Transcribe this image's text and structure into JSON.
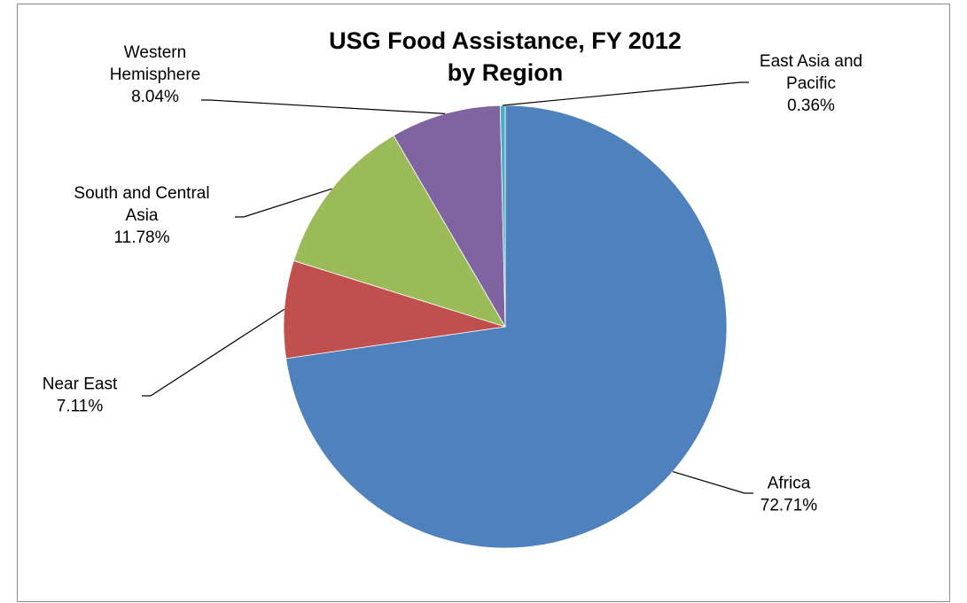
{
  "chart_data": {
    "type": "pie",
    "title": "USG Food Assistance, FY 2012",
    "subtitle": "by Region",
    "slices": [
      {
        "label": "Africa",
        "label_lines": [
          "Africa"
        ],
        "value": 72.71,
        "pct_text": "72.71%",
        "color": "#4F81BD"
      },
      {
        "label": "Near East",
        "label_lines": [
          "Near East"
        ],
        "value": 7.11,
        "pct_text": "7.11%",
        "color": "#C0504D"
      },
      {
        "label": "South and Central Asia",
        "label_lines": [
          "South and Central",
          "Asia"
        ],
        "value": 11.78,
        "pct_text": "11.78%",
        "color": "#9BBB59"
      },
      {
        "label": "Western Hemisphere",
        "label_lines": [
          "Western",
          "Hemisphere"
        ],
        "value": 8.04,
        "pct_text": "8.04%",
        "color": "#8064A2"
      },
      {
        "label": "East Asia and Pacific",
        "label_lines": [
          "East Asia and",
          "Pacific"
        ],
        "value": 0.36,
        "pct_text": "0.36%",
        "color": "#4BACC6"
      }
    ],
    "legend": "none"
  }
}
